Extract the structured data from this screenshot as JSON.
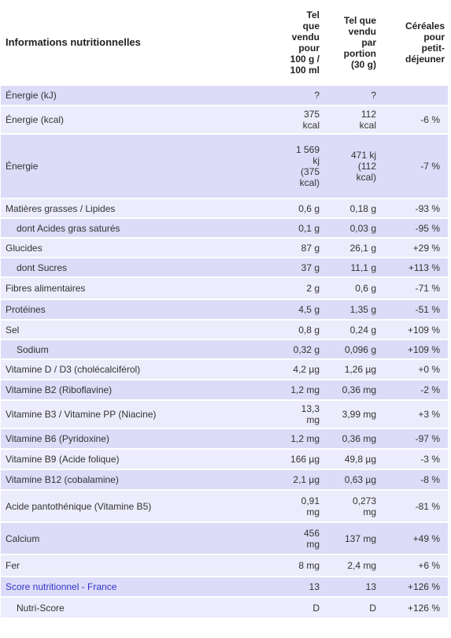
{
  "header": {
    "label": "Informations nutritionnelles",
    "col1": [
      "Tel",
      "que",
      "vendu",
      "pour",
      "100 g /",
      "100 ml"
    ],
    "col2": [
      "Tel que",
      "vendu",
      "par",
      "portion",
      "(30 g)"
    ],
    "col3": [
      "Céréales",
      "pour",
      "petit-",
      "déjeuner"
    ]
  },
  "rows": [
    {
      "label": "Énergie (kJ)",
      "v100": [
        "?"
      ],
      "vport": [
        "?"
      ],
      "cmp": ""
    },
    {
      "label": "Énergie (kcal)",
      "v100": [
        "375",
        "kcal"
      ],
      "vport": [
        "112",
        "kcal"
      ],
      "cmp": "-6 %"
    },
    {
      "label": "Énergie",
      "v100": [
        "1 569",
        "kj",
        "(375",
        "kcal)"
      ],
      "vport": [
        "471 kj",
        "(112",
        "kcal)"
      ],
      "cmp": "-7 %"
    },
    {
      "label": "Matières grasses / Lipides",
      "v100": [
        "0,6 g"
      ],
      "vport": [
        "0,18 g"
      ],
      "cmp": "-93 %"
    },
    {
      "label": "dont Acides gras saturés",
      "v100": [
        "0,1 g"
      ],
      "vport": [
        "0,03 g"
      ],
      "cmp": "-95 %"
    },
    {
      "label": "Glucides",
      "v100": [
        "87 g"
      ],
      "vport": [
        "26,1 g"
      ],
      "cmp": "+29 %"
    },
    {
      "label": "dont Sucres",
      "v100": [
        "37 g"
      ],
      "vport": [
        "11,1 g"
      ],
      "cmp": "+113 %"
    },
    {
      "label": "Fibres alimentaires",
      "v100": [
        "2 g"
      ],
      "vport": [
        "0,6 g"
      ],
      "cmp": "-71 %"
    },
    {
      "label": "Protéines",
      "v100": [
        "4,5 g"
      ],
      "vport": [
        "1,35 g"
      ],
      "cmp": "-51 %"
    },
    {
      "label": "Sel",
      "v100": [
        "0,8 g"
      ],
      "vport": [
        "0,24 g"
      ],
      "cmp": "+109 %"
    },
    {
      "label": "Sodium",
      "v100": [
        "0,32 g"
      ],
      "vport": [
        "0,096 g"
      ],
      "cmp": "+109 %"
    },
    {
      "label": "Vitamine D / D3 (cholécalciférol)",
      "v100": [
        "4,2 µg"
      ],
      "vport": [
        "1,26 µg"
      ],
      "cmp": "+0 %"
    },
    {
      "label": "Vitamine B2 (Riboflavine)",
      "v100": [
        "1,2 mg"
      ],
      "vport": [
        "0,36 mg"
      ],
      "cmp": "-2 %"
    },
    {
      "label": "Vitamine B3 / Vitamine PP (Niacine)",
      "v100": [
        "13,3",
        "mg"
      ],
      "vport": [
        "3,99 mg"
      ],
      "cmp": "+3 %"
    },
    {
      "label": "Vitamine B6 (Pyridoxine)",
      "v100": [
        "1,2 mg"
      ],
      "vport": [
        "0,36 mg"
      ],
      "cmp": "-97 %"
    },
    {
      "label": "Vitamine B9 (Acide folique)",
      "v100": [
        "166 µg"
      ],
      "vport": [
        "49,8 µg"
      ],
      "cmp": "-3 %"
    },
    {
      "label": "Vitamine B12 (cobalamine)",
      "v100": [
        "2,1 µg"
      ],
      "vport": [
        "0,63 µg"
      ],
      "cmp": "-8 %"
    },
    {
      "label": "Acide pantothénique (Vitamine B5)",
      "v100": [
        "0,91",
        "mg"
      ],
      "vport": [
        "0,273",
        "mg"
      ],
      "cmp": "-81 %"
    },
    {
      "label": "Calcium",
      "v100": [
        "456",
        "mg"
      ],
      "vport": [
        "137 mg"
      ],
      "cmp": "+49 %"
    },
    {
      "label": "Fer",
      "v100": [
        "8 mg"
      ],
      "vport": [
        "2,4 mg"
      ],
      "cmp": "+6 %"
    },
    {
      "label": "Score nutritionnel - France",
      "v100": [
        "13"
      ],
      "vport": [
        "13"
      ],
      "cmp": "+126 %"
    },
    {
      "label": "Nutri-Score",
      "v100": [
        "D"
      ],
      "vport": [
        "D"
      ],
      "cmp": "+126 %"
    }
  ]
}
